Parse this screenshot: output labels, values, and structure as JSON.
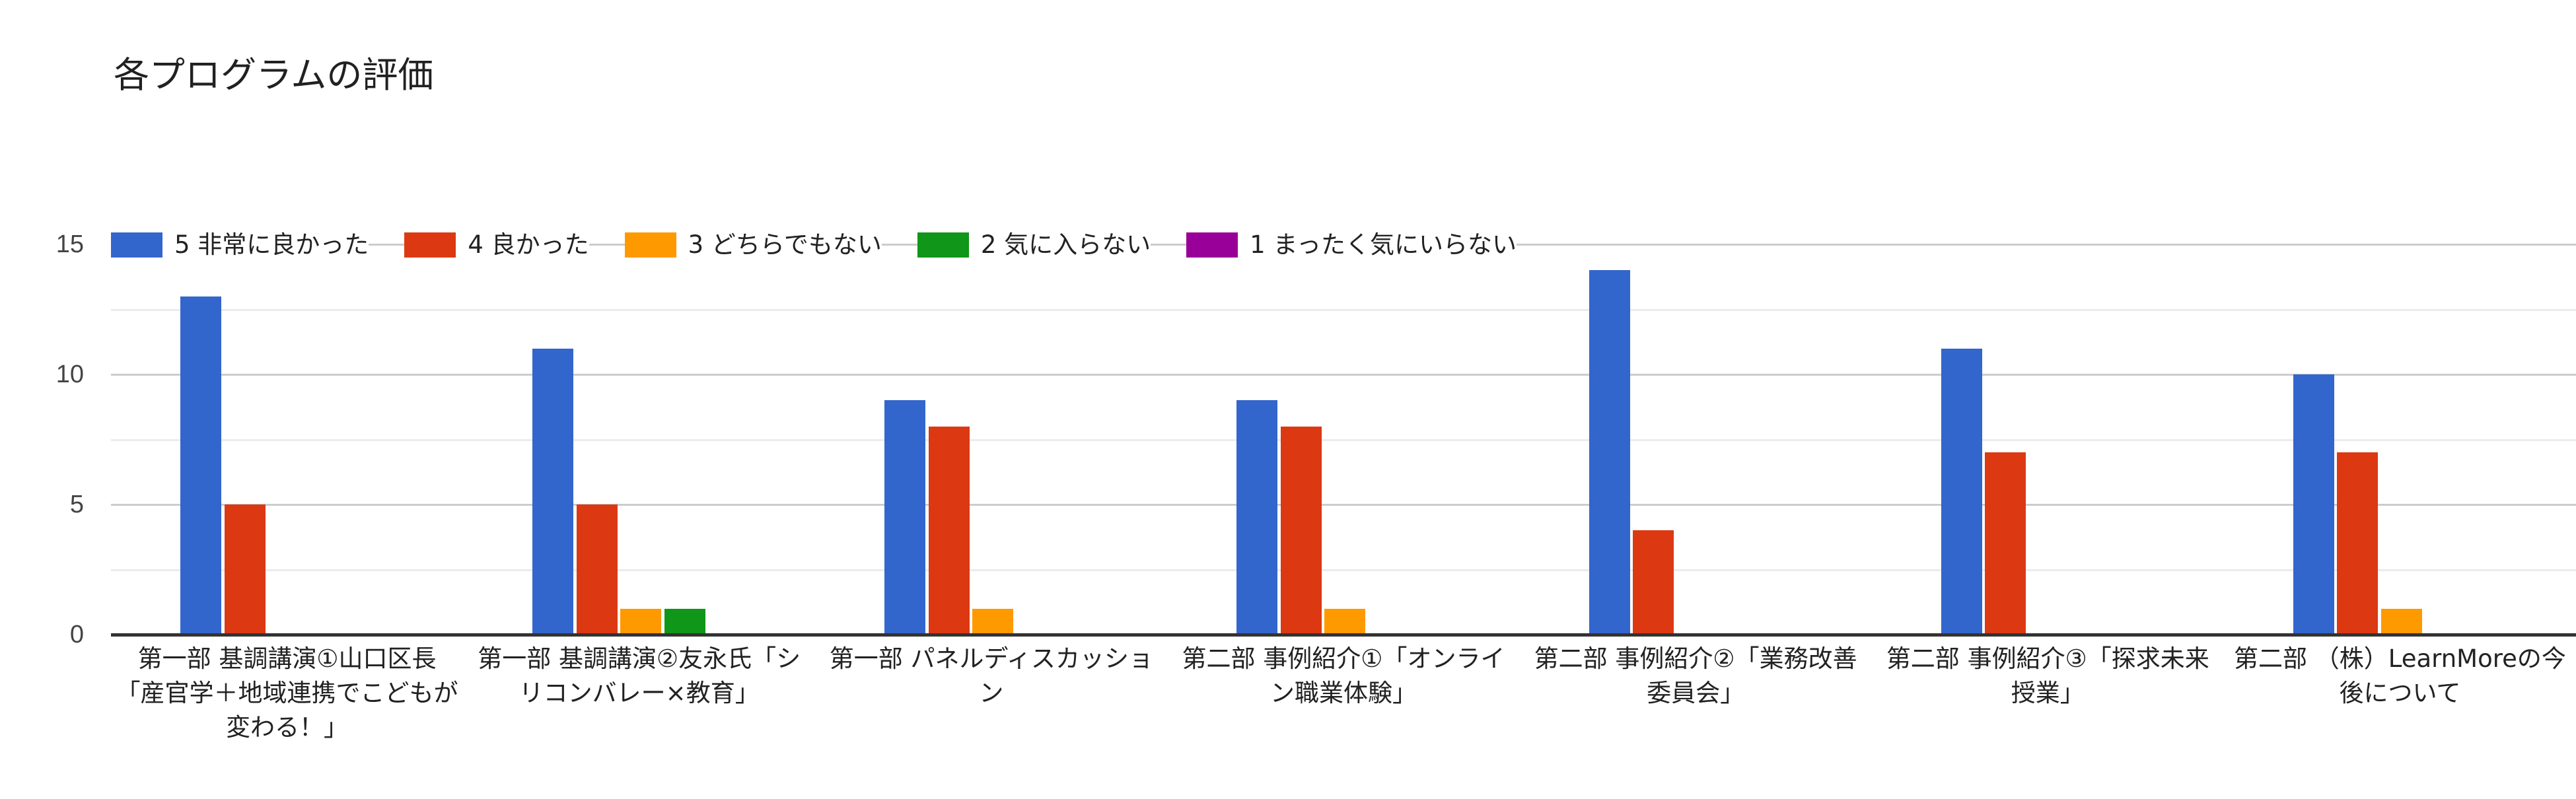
{
  "title": "各プログラムの評価",
  "y_ticks": [
    {
      "value": 0,
      "label": "0"
    },
    {
      "value": 5,
      "label": "5"
    },
    {
      "value": 10,
      "label": "10"
    },
    {
      "value": 15,
      "label": "15"
    }
  ],
  "legend": [
    {
      "label": "5 非常に良かった",
      "color": "#3366CC"
    },
    {
      "label": "4 良かった",
      "color": "#DC3912"
    },
    {
      "label": "3 どちらでもない",
      "color": "#FF9900"
    },
    {
      "label": "2 気に入らない",
      "color": "#109618"
    },
    {
      "label": "1 まったく気にいらない",
      "color": "#990099"
    }
  ],
  "groups": [
    {
      "label": "第一部 基調講演①山口区長「産官学＋地域連携でこどもが変わる！」"
    },
    {
      "label": "第一部 基調講演②友永氏「シリコンバレー×教育」"
    },
    {
      "label": "第一部 パネルディスカッション"
    },
    {
      "label": "第二部 事例紹介①「オンライン職業体験」"
    },
    {
      "label": "第二部 事例紹介②「業務改善委員会」"
    },
    {
      "label": "第二部 事例紹介③「探求未来授業」"
    },
    {
      "label": "第二部 （株）LearnMoreの今後について"
    }
  ],
  "chart_data": {
    "type": "bar",
    "title": "各プログラムの評価",
    "xlabel": "",
    "ylabel": "",
    "ylim": [
      0,
      15
    ],
    "yticks": [
      0,
      5,
      10,
      15
    ],
    "grid": true,
    "legend_position": "top",
    "categories": [
      "第一部 基調講演①山口区長「産官学＋地域連携でこどもが変わる！」",
      "第一部 基調講演②友永氏「シリコンバレー×教育」",
      "第一部 パネルディスカッション",
      "第二部 事例紹介①「オンライン職業体験」",
      "第二部 事例紹介②「業務改善委員会」",
      "第二部 事例紹介③「探求未来授業」",
      "第二部 （株）LearnMoreの今後について"
    ],
    "series": [
      {
        "name": "5 非常に良かった",
        "color": "#3366CC",
        "values": [
          13,
          11,
          9,
          9,
          14,
          11,
          10
        ]
      },
      {
        "name": "4 良かった",
        "color": "#DC3912",
        "values": [
          5,
          5,
          8,
          8,
          4,
          7,
          7
        ]
      },
      {
        "name": "3 どちらでもない",
        "color": "#FF9900",
        "values": [
          0,
          1,
          1,
          1,
          0,
          0,
          1
        ]
      },
      {
        "name": "2 気に入らない",
        "color": "#109618",
        "values": [
          0,
          1,
          0,
          0,
          0,
          0,
          0
        ]
      },
      {
        "name": "1 まったく気にいらない",
        "color": "#990099",
        "values": [
          0,
          0,
          0,
          0,
          0,
          0,
          0
        ]
      }
    ]
  }
}
